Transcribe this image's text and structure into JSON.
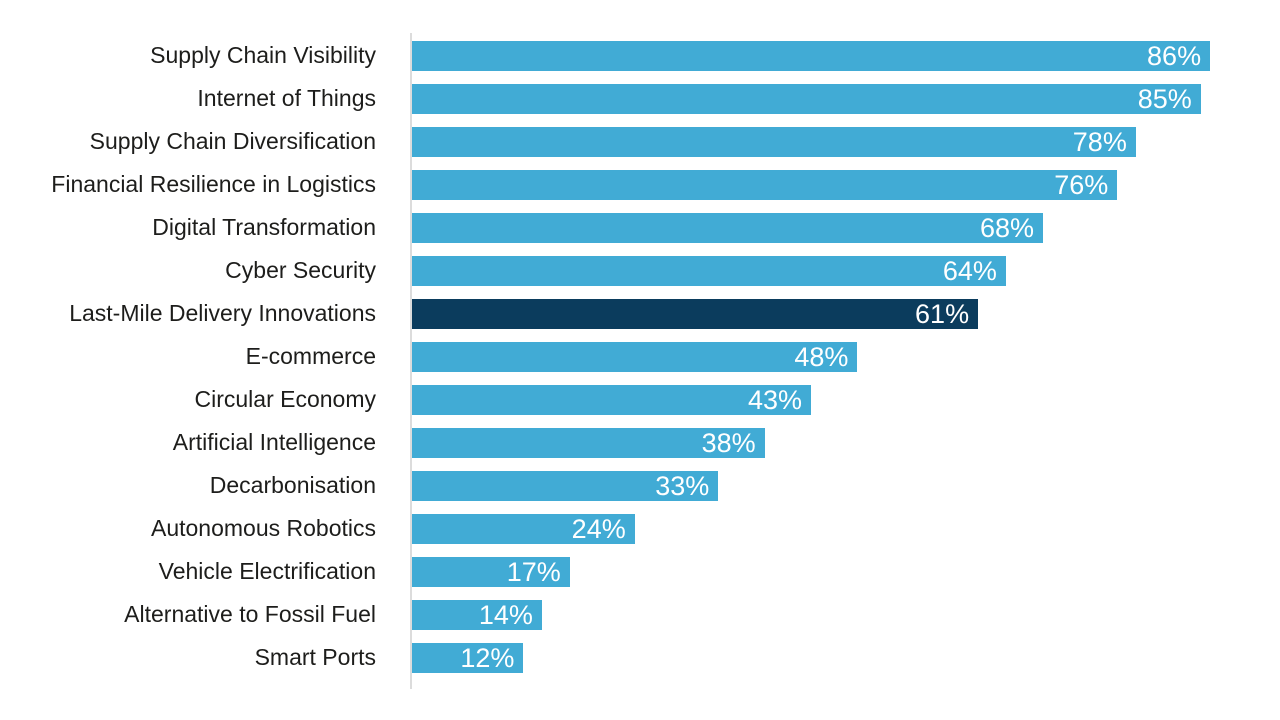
{
  "chart_data": {
    "type": "bar",
    "orientation": "horizontal",
    "title": "",
    "xlabel": "",
    "ylabel": "",
    "xlim": [
      0,
      100
    ],
    "grid": false,
    "legend": false,
    "categories": [
      "Supply Chain Visibility",
      "Internet of Things",
      "Supply Chain Diversification",
      "Financial Resilience in Logistics",
      "Digital Transformation",
      "Cyber Security",
      "Last-Mile Delivery Innovations",
      "E-commerce",
      "Circular Economy",
      "Artificial Intelligence",
      "Decarbonisation",
      "Autonomous Robotics",
      "Vehicle Electrification",
      "Alternative to Fossil Fuel",
      "Smart Ports"
    ],
    "values": [
      86,
      85,
      78,
      76,
      68,
      64,
      61,
      48,
      43,
      38,
      33,
      24,
      17,
      14,
      12
    ],
    "value_labels": [
      "86%",
      "85%",
      "78%",
      "76%",
      "68%",
      "64%",
      "61%",
      "48%",
      "43%",
      "38%",
      "33%",
      "24%",
      "17%",
      "14%",
      "12%"
    ],
    "highlight_index": 6,
    "colors": {
      "bar": "#41abd5",
      "highlight_bar": "#0b3c5d",
      "axis_line": "#dcdcdc",
      "category_label": "#1d1d1b",
      "value_label": "#ffffff",
      "background": "#ffffff"
    }
  }
}
